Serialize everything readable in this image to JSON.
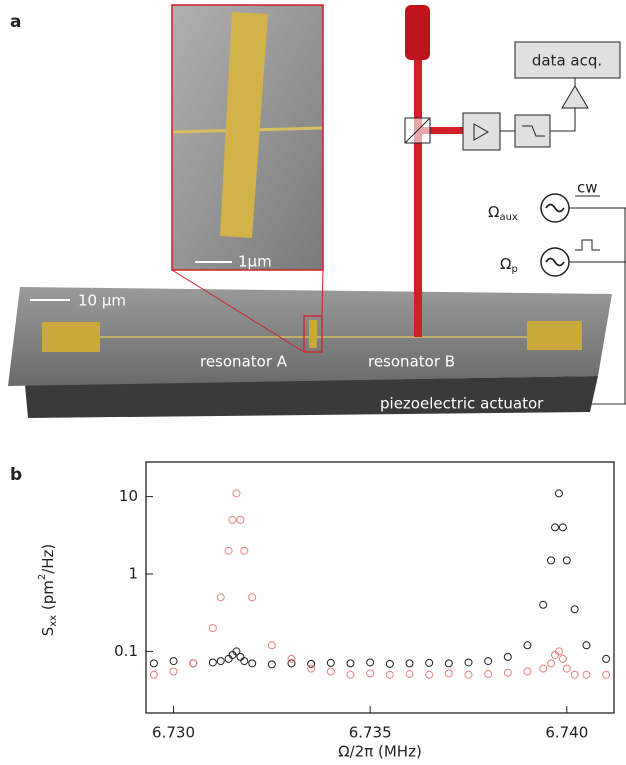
{
  "panel_a": {
    "label": "a",
    "inset_scale": "1μm",
    "scale": "10 μm",
    "resonator_a": "resonator A",
    "resonator_b": "resonator B",
    "actuator": "piezoelectric actuator",
    "data_acq": "data acq.",
    "aux_symbol": "Ω",
    "aux_sub": "aux",
    "probe_symbol": "Ω",
    "probe_sub": "p",
    "cw": "cw"
  },
  "chart_data": {
    "type": "scatter",
    "panel_label": "b",
    "x_label": "Ω/2π (MHz)",
    "y_label_parts": [
      "S",
      "xx",
      " (pm",
      "2",
      "/Hz)"
    ],
    "x": [
      6.7295,
      6.73,
      6.7305,
      6.731,
      6.7312,
      6.7314,
      6.7315,
      6.7316,
      6.7317,
      6.7318,
      6.732,
      6.7325,
      6.733,
      6.7335,
      6.734,
      6.7345,
      6.735,
      6.7355,
      6.736,
      6.7365,
      6.737,
      6.7375,
      6.738,
      6.7385,
      6.739,
      6.7394,
      6.7396,
      6.7397,
      6.7398,
      6.7399,
      6.74,
      6.7402,
      6.7405,
      6.741
    ],
    "series": [
      {
        "color": "#222222",
        "values": [
          0.07,
          0.075,
          0.07,
          0.072,
          0.075,
          0.08,
          0.09,
          0.1,
          0.085,
          0.075,
          0.07,
          0.068,
          0.07,
          0.069,
          0.071,
          0.07,
          0.072,
          0.069,
          0.07,
          0.071,
          0.07,
          0.072,
          0.075,
          0.085,
          0.12,
          0.4,
          1.5,
          4,
          11,
          4,
          1.5,
          0.35,
          0.12,
          0.08
        ]
      },
      {
        "color": "#f08080",
        "values": [
          0.05,
          0.055,
          0.07,
          0.2,
          0.5,
          2,
          5,
          11,
          5,
          2,
          0.5,
          0.12,
          0.08,
          0.06,
          0.055,
          0.05,
          0.052,
          0.05,
          0.051,
          0.05,
          0.052,
          0.05,
          0.051,
          0.053,
          0.055,
          0.06,
          0.07,
          0.09,
          0.1,
          0.08,
          0.06,
          0.05,
          0.05,
          0.05
        ]
      }
    ],
    "xlim": [
      6.7293,
      6.7412
    ],
    "xticks": [
      {
        "value": 6.73,
        "label": "6.730"
      },
      {
        "value": 6.735,
        "label": "6.735"
      },
      {
        "value": 6.74,
        "label": "6.740"
      }
    ],
    "ylim": [
      0.016,
      28
    ],
    "yticks": [
      0.1,
      1,
      10
    ],
    "log_y": true
  }
}
